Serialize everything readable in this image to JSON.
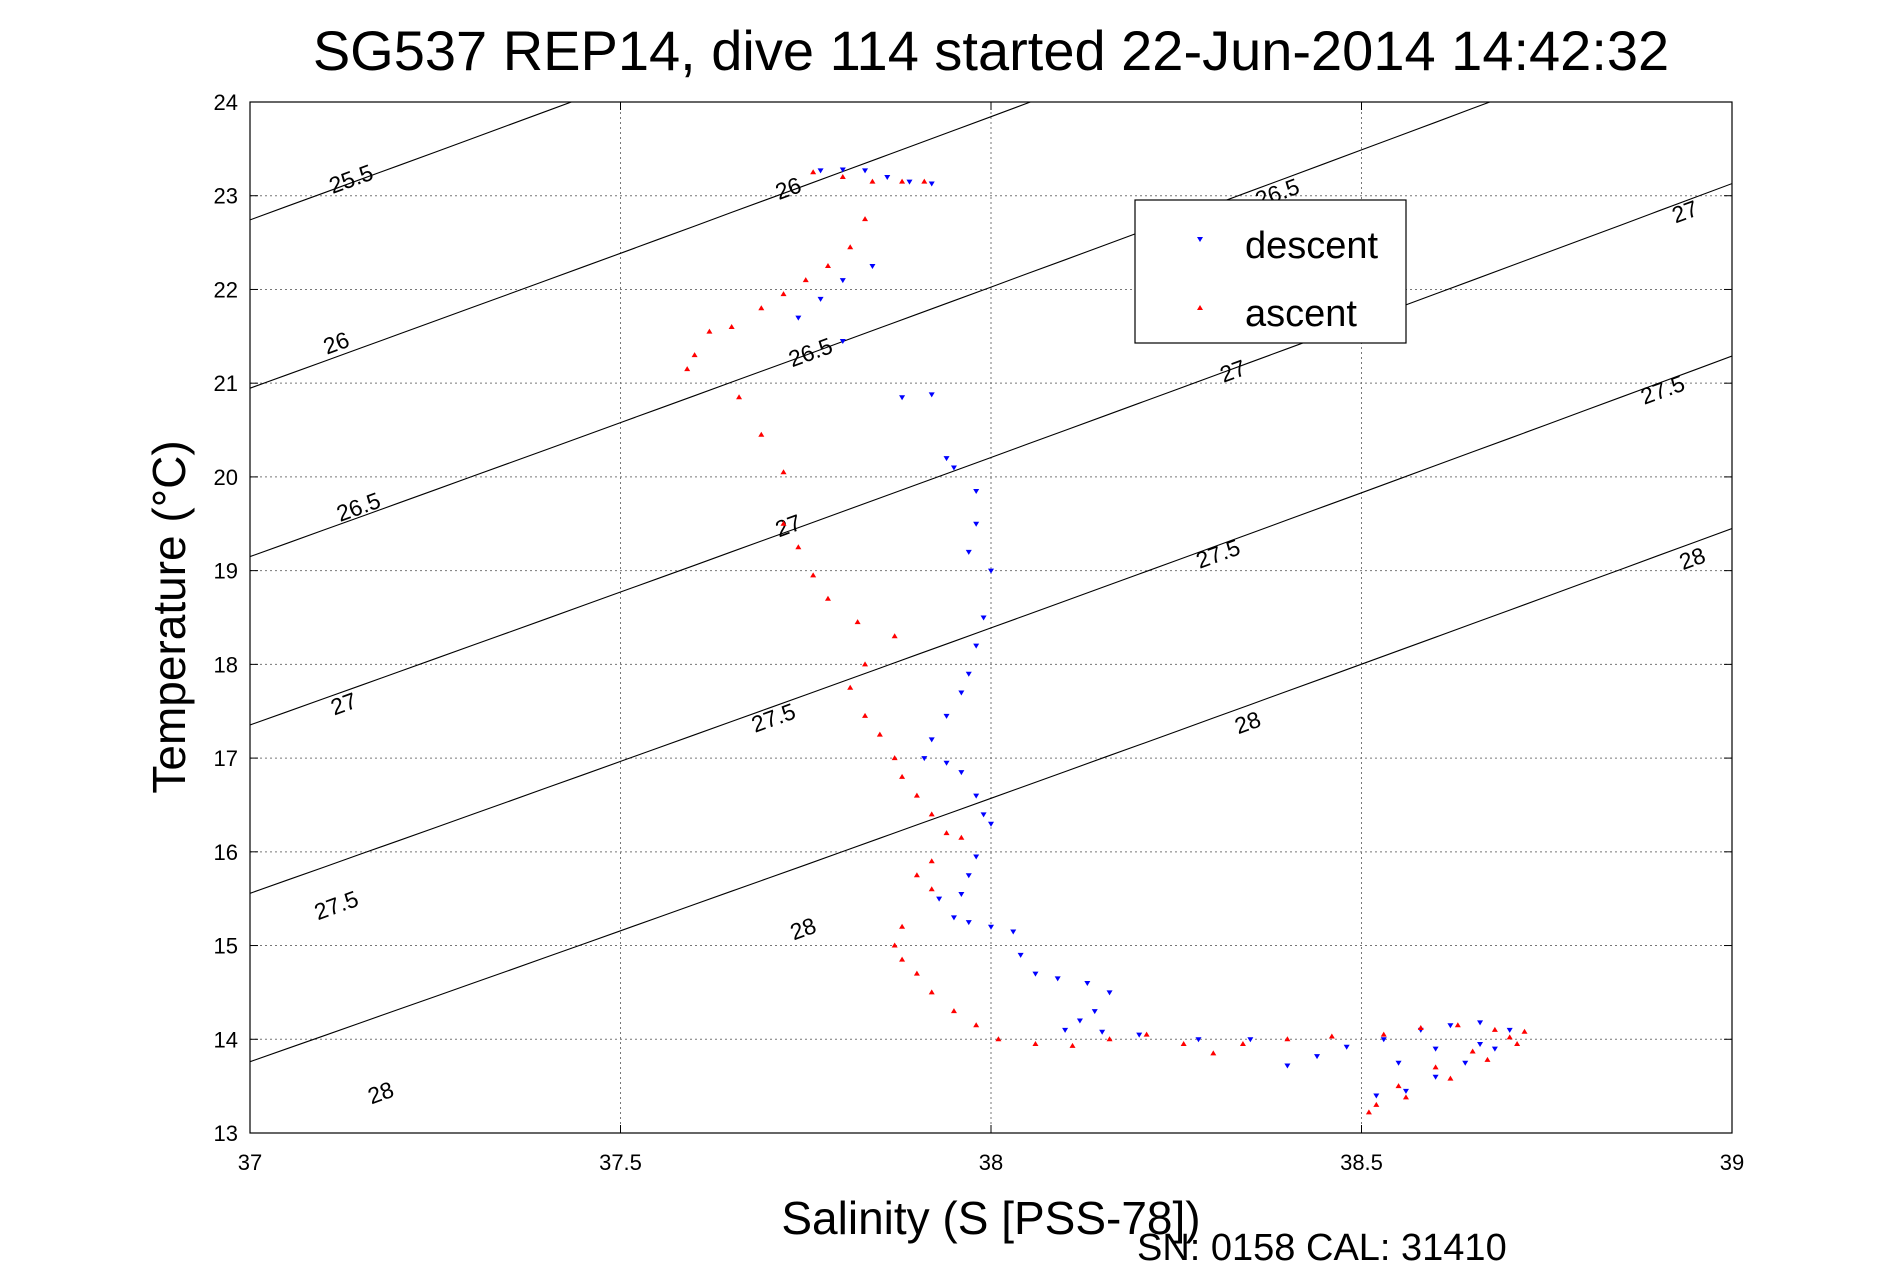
{
  "chart_data": {
    "type": "scatter",
    "title": "SG537 REP14, dive 114 started 22-Jun-2014 14:42:32",
    "xlabel": "Salinity (S [PSS-78])",
    "ylabel": "Temperature (°C)",
    "xlim": [
      37,
      39
    ],
    "ylim": [
      13,
      24
    ],
    "x_ticks": [
      "37",
      "37.5",
      "38",
      "38.5",
      "39"
    ],
    "y_ticks": [
      "13",
      "14",
      "15",
      "16",
      "17",
      "18",
      "19",
      "20",
      "21",
      "22",
      "23",
      "24"
    ],
    "grid": true,
    "legend": {
      "placement": "top-right",
      "entries": [
        "descent",
        "ascent"
      ]
    },
    "colors": {
      "descent": "#0000ff",
      "ascent": "#ff0000",
      "contour": "#000000"
    },
    "density_contours": {
      "levels": [
        25.5,
        26,
        26.5,
        27,
        27.5,
        28
      ],
      "labels": [
        {
          "text": "25.5",
          "x": 37.14,
          "y": 23.1
        },
        {
          "text": "26",
          "x": 37.73,
          "y": 23.0
        },
        {
          "text": "26",
          "x": 37.12,
          "y": 21.35
        },
        {
          "text": "26.5",
          "x": 37.76,
          "y": 21.25
        },
        {
          "text": "26.5",
          "x": 38.39,
          "y": 22.95
        },
        {
          "text": "26.5",
          "x": 37.15,
          "y": 19.6
        },
        {
          "text": "27",
          "x": 37.73,
          "y": 19.4
        },
        {
          "text": "27",
          "x": 38.33,
          "y": 21.05
        },
        {
          "text": "27",
          "x": 38.94,
          "y": 22.75
        },
        {
          "text": "27",
          "x": 37.13,
          "y": 17.5
        },
        {
          "text": "27.5",
          "x": 37.71,
          "y": 17.35
        },
        {
          "text": "27.5",
          "x": 38.31,
          "y": 19.1
        },
        {
          "text": "27.5",
          "x": 38.91,
          "y": 20.85
        },
        {
          "text": "27.5",
          "x": 37.12,
          "y": 15.35
        },
        {
          "text": "28",
          "x": 37.75,
          "y": 15.1
        },
        {
          "text": "28",
          "x": 38.35,
          "y": 17.3
        },
        {
          "text": "28",
          "x": 38.95,
          "y": 19.05
        },
        {
          "text": "28",
          "x": 37.18,
          "y": 13.35
        }
      ]
    },
    "series": [
      {
        "name": "descent",
        "marker": "triangle-down",
        "points": [
          [
            37.77,
            23.27
          ],
          [
            37.8,
            23.28
          ],
          [
            37.83,
            23.27
          ],
          [
            37.86,
            23.2
          ],
          [
            37.89,
            23.15
          ],
          [
            37.92,
            23.13
          ],
          [
            37.84,
            22.25
          ],
          [
            37.8,
            22.1
          ],
          [
            37.77,
            21.9
          ],
          [
            37.74,
            21.7
          ],
          [
            37.8,
            21.45
          ],
          [
            37.88,
            20.85
          ],
          [
            37.92,
            20.88
          ],
          [
            37.94,
            20.2
          ],
          [
            37.95,
            20.1
          ],
          [
            37.98,
            19.85
          ],
          [
            37.98,
            19.5
          ],
          [
            37.97,
            19.2
          ],
          [
            38.0,
            19.0
          ],
          [
            37.99,
            18.5
          ],
          [
            37.98,
            18.2
          ],
          [
            37.97,
            17.9
          ],
          [
            37.96,
            17.7
          ],
          [
            37.94,
            17.45
          ],
          [
            37.92,
            17.2
          ],
          [
            37.91,
            17.0
          ],
          [
            37.94,
            16.95
          ],
          [
            37.96,
            16.85
          ],
          [
            37.98,
            16.6
          ],
          [
            37.99,
            16.4
          ],
          [
            38.0,
            16.3
          ],
          [
            37.98,
            15.95
          ],
          [
            37.97,
            15.75
          ],
          [
            37.96,
            15.55
          ],
          [
            37.95,
            15.3
          ],
          [
            37.93,
            15.5
          ],
          [
            37.97,
            15.25
          ],
          [
            38.0,
            15.2
          ],
          [
            38.03,
            15.15
          ],
          [
            38.04,
            14.9
          ],
          [
            38.06,
            14.7
          ],
          [
            38.09,
            14.65
          ],
          [
            38.13,
            14.6
          ],
          [
            38.16,
            14.5
          ],
          [
            38.14,
            14.3
          ],
          [
            38.12,
            14.2
          ],
          [
            38.1,
            14.1
          ],
          [
            38.15,
            14.08
          ],
          [
            38.2,
            14.05
          ],
          [
            38.28,
            14.0
          ],
          [
            38.35,
            14.0
          ],
          [
            38.4,
            13.72
          ],
          [
            38.44,
            13.82
          ],
          [
            38.48,
            13.92
          ],
          [
            38.53,
            14.0
          ],
          [
            38.58,
            14.1
          ],
          [
            38.62,
            14.15
          ],
          [
            38.66,
            14.18
          ],
          [
            38.7,
            14.1
          ],
          [
            38.66,
            13.95
          ],
          [
            38.6,
            13.9
          ],
          [
            38.55,
            13.75
          ],
          [
            38.52,
            13.4
          ],
          [
            38.56,
            13.45
          ],
          [
            38.6,
            13.6
          ],
          [
            38.64,
            13.75
          ],
          [
            38.68,
            13.9
          ]
        ]
      },
      {
        "name": "ascent",
        "marker": "triangle-up",
        "points": [
          [
            37.76,
            23.25
          ],
          [
            37.8,
            23.2
          ],
          [
            37.84,
            23.15
          ],
          [
            37.88,
            23.15
          ],
          [
            37.91,
            23.15
          ],
          [
            37.83,
            22.75
          ],
          [
            37.81,
            22.45
          ],
          [
            37.78,
            22.25
          ],
          [
            37.75,
            22.1
          ],
          [
            37.72,
            21.95
          ],
          [
            37.69,
            21.8
          ],
          [
            37.65,
            21.6
          ],
          [
            37.62,
            21.55
          ],
          [
            37.6,
            21.3
          ],
          [
            37.59,
            21.15
          ],
          [
            37.66,
            20.85
          ],
          [
            37.69,
            20.45
          ],
          [
            37.72,
            20.05
          ],
          [
            37.72,
            19.5
          ],
          [
            37.74,
            19.25
          ],
          [
            37.76,
            18.95
          ],
          [
            37.78,
            18.7
          ],
          [
            37.82,
            18.45
          ],
          [
            37.87,
            18.3
          ],
          [
            37.83,
            18.0
          ],
          [
            37.81,
            17.75
          ],
          [
            37.83,
            17.45
          ],
          [
            37.85,
            17.25
          ],
          [
            37.87,
            17.0
          ],
          [
            37.88,
            16.8
          ],
          [
            37.9,
            16.6
          ],
          [
            37.92,
            16.4
          ],
          [
            37.94,
            16.2
          ],
          [
            37.96,
            16.15
          ],
          [
            37.92,
            15.9
          ],
          [
            37.9,
            15.75
          ],
          [
            37.92,
            15.6
          ],
          [
            37.88,
            15.2
          ],
          [
            37.87,
            15.0
          ],
          [
            37.88,
            14.85
          ],
          [
            37.9,
            14.7
          ],
          [
            37.92,
            14.5
          ],
          [
            37.95,
            14.3
          ],
          [
            37.98,
            14.15
          ],
          [
            38.01,
            14.0
          ],
          [
            38.06,
            13.95
          ],
          [
            38.11,
            13.93
          ],
          [
            38.16,
            14.0
          ],
          [
            38.21,
            14.05
          ],
          [
            38.26,
            13.95
          ],
          [
            38.3,
            13.85
          ],
          [
            38.34,
            13.95
          ],
          [
            38.4,
            14.0
          ],
          [
            38.46,
            14.03
          ],
          [
            38.53,
            14.05
          ],
          [
            38.58,
            14.12
          ],
          [
            38.63,
            14.15
          ],
          [
            38.68,
            14.1
          ],
          [
            38.72,
            14.08
          ],
          [
            38.7,
            14.02
          ],
          [
            38.65,
            13.87
          ],
          [
            38.6,
            13.7
          ],
          [
            38.55,
            13.5
          ],
          [
            38.52,
            13.3
          ],
          [
            38.51,
            13.22
          ],
          [
            38.56,
            13.38
          ],
          [
            38.62,
            13.58
          ],
          [
            38.67,
            13.78
          ],
          [
            38.71,
            13.95
          ]
        ]
      }
    ]
  },
  "footer": {
    "serial": "SN: 0158  CAL: 31410"
  }
}
